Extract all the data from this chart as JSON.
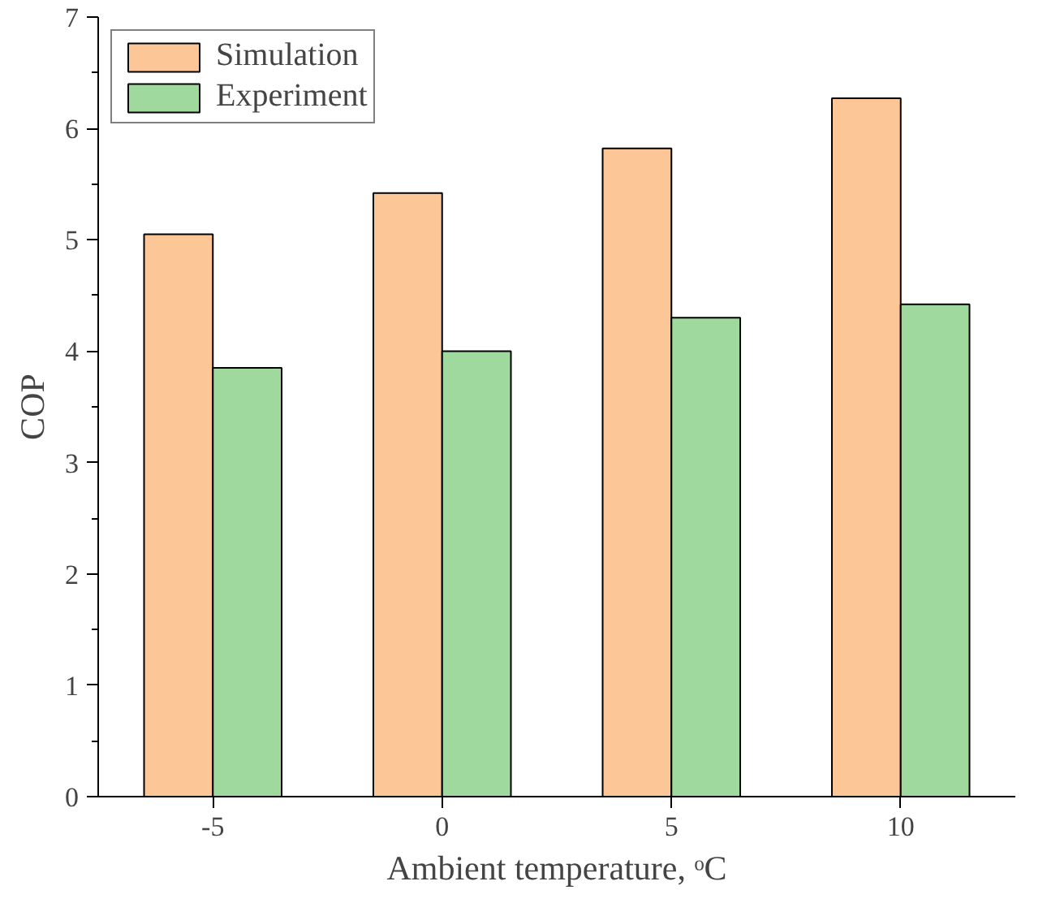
{
  "chart_data": {
    "type": "bar",
    "xlabel": "Ambient temperature, ᵒC",
    "ylabel": "COP",
    "categories": [
      "-5",
      "0",
      "5",
      "10"
    ],
    "series": [
      {
        "name": "Simulation",
        "color": "#fdc697",
        "values": [
          5.05,
          5.42,
          5.82,
          6.27
        ]
      },
      {
        "name": "Experiment",
        "color": "#a0d99e",
        "values": [
          3.85,
          4.0,
          4.3,
          4.42
        ]
      }
    ],
    "ylim": [
      0,
      7
    ],
    "yticks": [
      0,
      1,
      2,
      3,
      4,
      5,
      6,
      7
    ],
    "grid": false,
    "legend": "top left"
  }
}
